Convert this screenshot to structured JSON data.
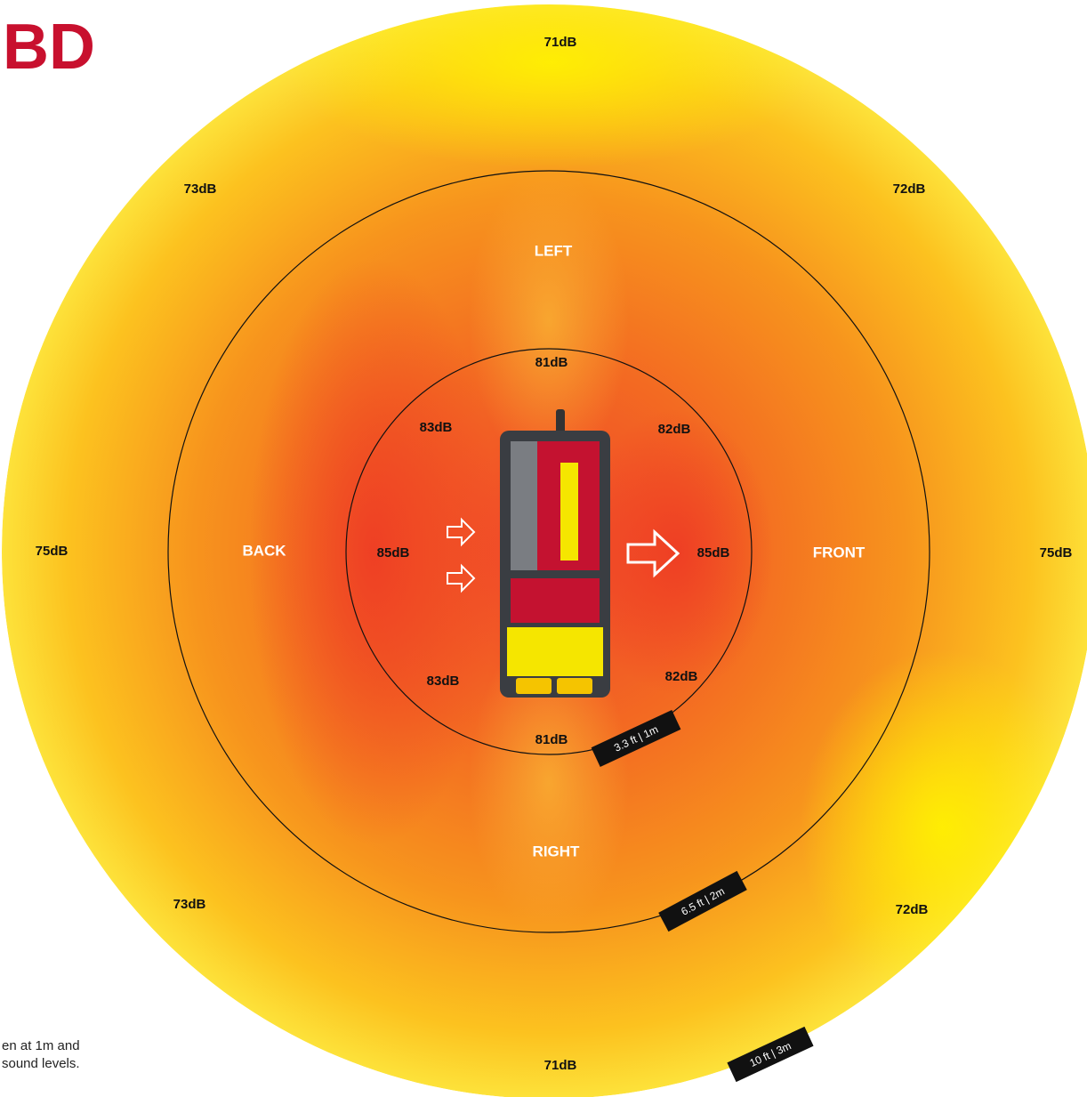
{
  "logo": "BD",
  "outer_ring": {
    "labels": [
      "71dB",
      "73dB",
      "72dB",
      "75dB",
      "75dB",
      "73dB",
      "72dB",
      "71dB"
    ],
    "distance_tag": "10 ft | 3m"
  },
  "middle_ring": {
    "directions": [
      "LEFT",
      "BACK",
      "FRONT",
      "RIGHT"
    ],
    "distance_tag": "6.5 ft | 2m"
  },
  "inner_ring": {
    "labels": [
      "81dB",
      "83dB",
      "82dB",
      "85dB",
      "85dB",
      "83dB",
      "82dB",
      "81dB"
    ],
    "distance_tag": "3.3 ft | 1m"
  },
  "caption": [
    "en at 1m and",
    "sound levels."
  ]
}
